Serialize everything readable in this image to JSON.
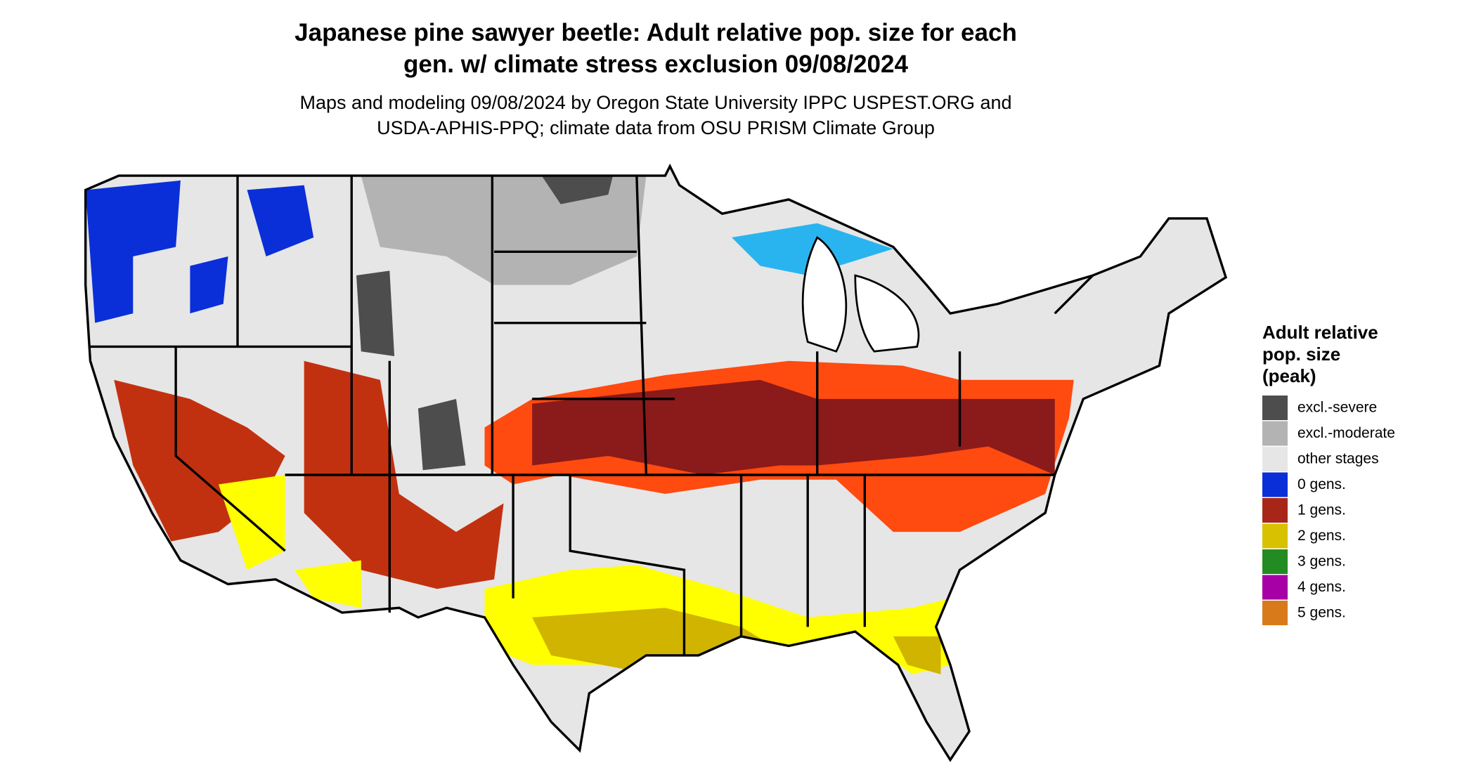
{
  "title": [
    "Japanese pine sawyer beetle: Adult relative pop. size for each",
    "gen. w/ climate stress exclusion 09/08/2024"
  ],
  "subtitle": [
    "Maps and modeling 09/08/2024 by Oregon State University IPPC USPEST.ORG and",
    "USDA-APHIS-PPQ; climate data from OSU PRISM Climate Group"
  ],
  "legend": {
    "title": [
      "Adult relative",
      "pop. size",
      "(peak)"
    ],
    "items": [
      {
        "label": "excl.-severe",
        "color": "#4d4d4d"
      },
      {
        "label": "excl.-moderate",
        "color": "#b3b3b3"
      },
      {
        "label": "other stages",
        "color": "#e6e6e6"
      },
      {
        "label": "0 gens.",
        "color": "#0a2fd8"
      },
      {
        "label": "1 gens.",
        "color": "#a82617"
      },
      {
        "label": "2 gens.",
        "color": "#d8c100"
      },
      {
        "label": "3 gens.",
        "color": "#228b22"
      },
      {
        "label": "4 gens.",
        "color": "#a600a6"
      },
      {
        "label": "5 gens.",
        "color": "#d97a1a"
      }
    ]
  }
}
